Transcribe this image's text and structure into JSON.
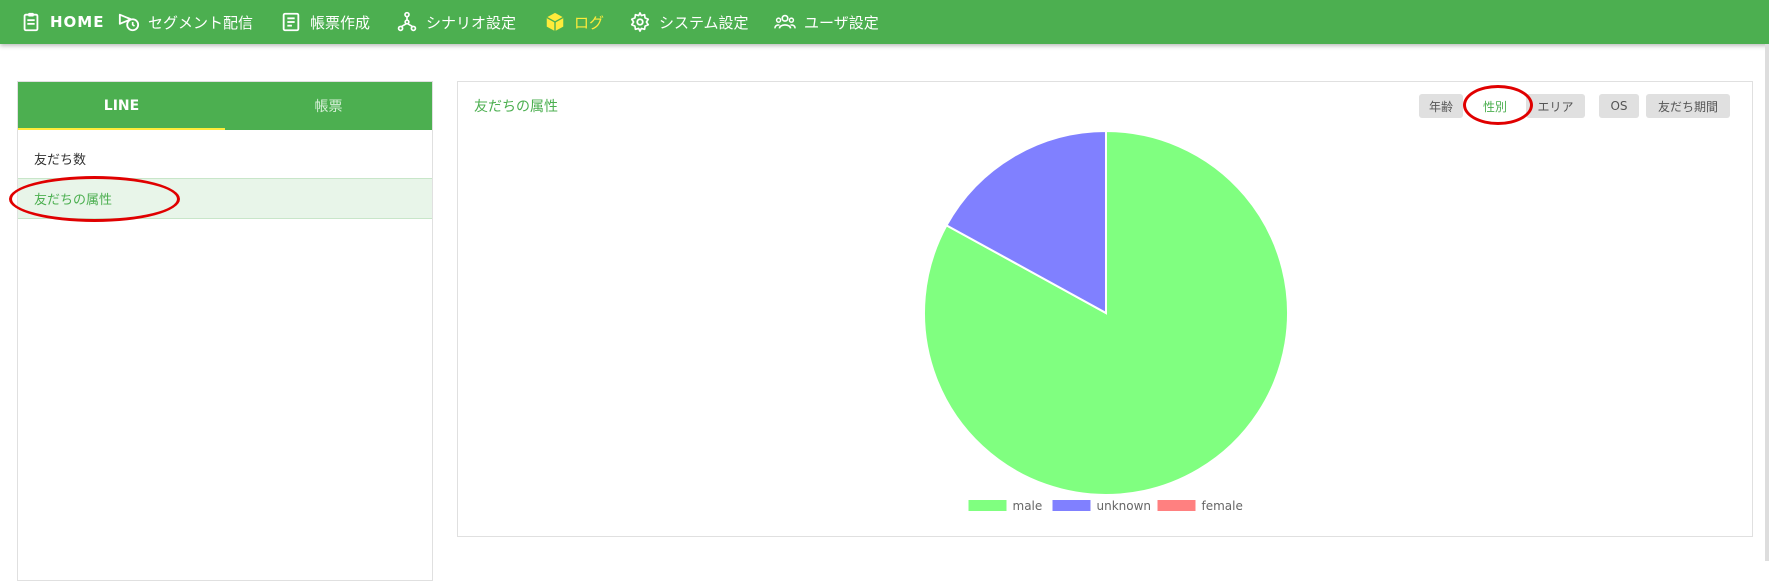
{
  "nav": {
    "items": [
      {
        "label": "HOME",
        "icon": "clipboard-icon"
      },
      {
        "label": "セグメント配信",
        "icon": "send-clock-icon"
      },
      {
        "label": "帳票作成",
        "icon": "document-icon"
      },
      {
        "label": "シナリオ設定",
        "icon": "flow-icon"
      },
      {
        "label": "ログ",
        "icon": "cube-icon",
        "active": true
      },
      {
        "label": "システム設定",
        "icon": "gear-icon"
      },
      {
        "label": "ユーザ設定",
        "icon": "users-icon"
      }
    ]
  },
  "sidebar": {
    "tabs": [
      {
        "label": "LINE",
        "active": true
      },
      {
        "label": "帳票",
        "active": false
      }
    ],
    "items": [
      {
        "label": "友だち数",
        "selected": false
      },
      {
        "label": "友だちの属性",
        "selected": true
      }
    ]
  },
  "main": {
    "title": "友だちの属性",
    "filters": [
      {
        "label": "年齢",
        "active": false
      },
      {
        "label": "性別",
        "active": true
      },
      {
        "label": "エリア",
        "active": false
      },
      {
        "label": "OS",
        "active": false
      },
      {
        "label": "友だち期間",
        "active": false
      }
    ]
  },
  "colors": {
    "brand_green": "#4caf50",
    "active_yellow": "#ffeb3b",
    "annotation_red": "#e00000"
  },
  "chart_data": {
    "type": "pie",
    "title": "",
    "categories": [
      "male",
      "unknown",
      "female"
    ],
    "values": [
      83,
      17,
      0
    ],
    "colors": [
      "#80ff80",
      "#8080ff",
      "#ff8080"
    ],
    "legend_position": "bottom"
  }
}
